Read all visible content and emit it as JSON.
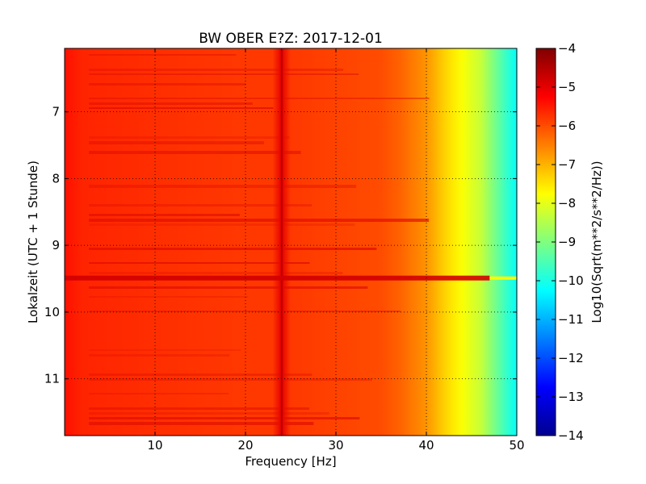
{
  "chart_data": {
    "type": "heatmap",
    "title": "BW OBER E?Z: 2017-12-01",
    "xlabel": "Frequency [Hz]",
    "ylabel": "Lokalzeit (UTC + 1 Stunde)",
    "xlim": [
      0,
      50
    ],
    "ylim": [
      11.85,
      6.05
    ],
    "x_ticks": [
      10,
      20,
      30,
      40,
      50
    ],
    "y_ticks": [
      7,
      8,
      9,
      10,
      11
    ],
    "grid": true,
    "grid_style": "dotted",
    "colormap": "jet",
    "colorbar": {
      "label": "Log10(Sqrt(m**2/s**2/Hz))",
      "range": [
        -14,
        -4
      ],
      "ticks": [
        -4,
        -5,
        -6,
        -7,
        -8,
        -9,
        -10,
        -11,
        -12,
        -13,
        -14
      ]
    },
    "typical_spectrum": {
      "frequency_hz": [
        0,
        2,
        10,
        20,
        23,
        24,
        25,
        30,
        35,
        37,
        40,
        42,
        44,
        46,
        47,
        48,
        49,
        50
      ],
      "log_amplitude": [
        -5.4,
        -5.6,
        -5.7,
        -5.8,
        -5.8,
        -5.0,
        -5.8,
        -5.9,
        -6.0,
        -6.2,
        -6.7,
        -7.3,
        -7.8,
        -8.3,
        -8.8,
        -9.3,
        -9.8,
        -10.2
      ]
    },
    "features": [
      {
        "kind": "narrowband-line",
        "frequency_hz": 24,
        "log_amplitude": -5.0
      },
      {
        "kind": "transient-event",
        "time_h": 9.49,
        "frequency_range_hz": [
          0,
          50
        ],
        "log_amplitude": -4.8
      }
    ]
  }
}
